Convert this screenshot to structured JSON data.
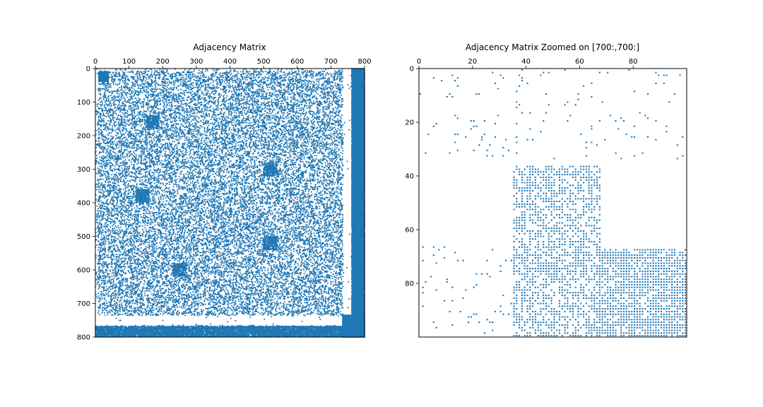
{
  "colors": {
    "marker": "#1f77b4",
    "frame": "#000000",
    "background": "#ffffff"
  },
  "chart_data": [
    {
      "type": "scatter",
      "subtype": "spy-matrix",
      "title": "Adjacency Matrix",
      "xticks": [
        "0",
        "100",
        "200",
        "300",
        "400",
        "500",
        "600",
        "700",
        "800"
      ],
      "yticks": [
        "0",
        "100",
        "200",
        "300",
        "400",
        "500",
        "600",
        "700",
        "800"
      ],
      "xlim": [
        0,
        800
      ],
      "ylim": [
        800,
        0
      ],
      "x_axis_position": "top",
      "grid": false,
      "matrix_size": 800
    },
    {
      "type": "scatter",
      "subtype": "spy-matrix",
      "title": "Adjacency Matrix Zoomed on [700:,700:]",
      "xticks": [
        "0",
        "20",
        "40",
        "60",
        "80"
      ],
      "yticks": [
        "0",
        "20",
        "40",
        "60",
        "80"
      ],
      "xlim": [
        0,
        100
      ],
      "ylim": [
        100,
        0
      ],
      "x_axis_position": "top",
      "grid": false,
      "matrix_size": 100
    }
  ]
}
